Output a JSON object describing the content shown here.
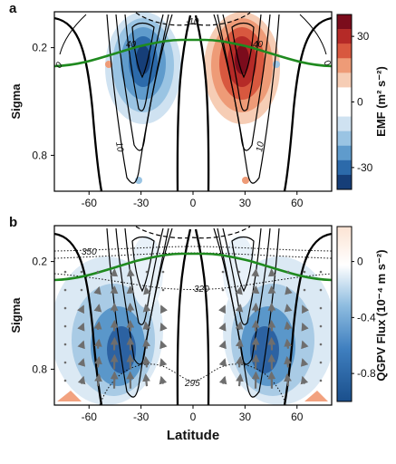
{
  "chart_data": [
    {
      "panel_label": "a",
      "type": "heatmap",
      "x_ticks": [
        -60,
        -30,
        0,
        30,
        60
      ],
      "xlim": [
        -80,
        80
      ],
      "ylabel": "Sigma",
      "y_ticks": [
        "0.2",
        "0.8"
      ],
      "ylim": [
        0.0,
        1.0
      ],
      "colorbar": {
        "label": "EMF (m² s⁻²)",
        "ticks": [
          "30",
          "0",
          "-30"
        ],
        "range": [
          -40,
          40
        ]
      },
      "contour_labels": [
        "-10",
        "40",
        "40",
        "10",
        "10",
        "0",
        "0"
      ],
      "features": [
        {
          "kind": "emf_minimum",
          "lat": -30,
          "sigma": 0.24,
          "value": -40
        },
        {
          "kind": "emf_maximum",
          "lat": 30,
          "sigma": 0.24,
          "value": 40
        }
      ],
      "tropopause_color": "#1f8a1f"
    },
    {
      "panel_label": "b",
      "type": "heatmap",
      "x_ticks": [
        -60,
        -30,
        0,
        30,
        60
      ],
      "xlim": [
        -80,
        80
      ],
      "xlabel": "Latitude",
      "ylabel": "Sigma",
      "y_ticks": [
        "0.2",
        "0.8"
      ],
      "ylim": [
        0.0,
        1.0
      ],
      "colorbar": {
        "label": "QGPV Flux (10⁻⁴ m s⁻²)",
        "ticks": [
          "0",
          "-0.4",
          "-0.8"
        ],
        "range": [
          -1.0,
          0.25
        ]
      },
      "theta_labels": [
        "350",
        "320",
        "295"
      ],
      "features": [
        {
          "kind": "qgpv_minimum",
          "lat": -40,
          "sigma": 0.7,
          "value": -1.0
        },
        {
          "kind": "qgpv_minimum",
          "lat": 40,
          "sigma": 0.7,
          "value": -1.0
        }
      ],
      "tropopause_color": "#1f8a1f",
      "arrow_color": "#6e6e6e"
    }
  ]
}
